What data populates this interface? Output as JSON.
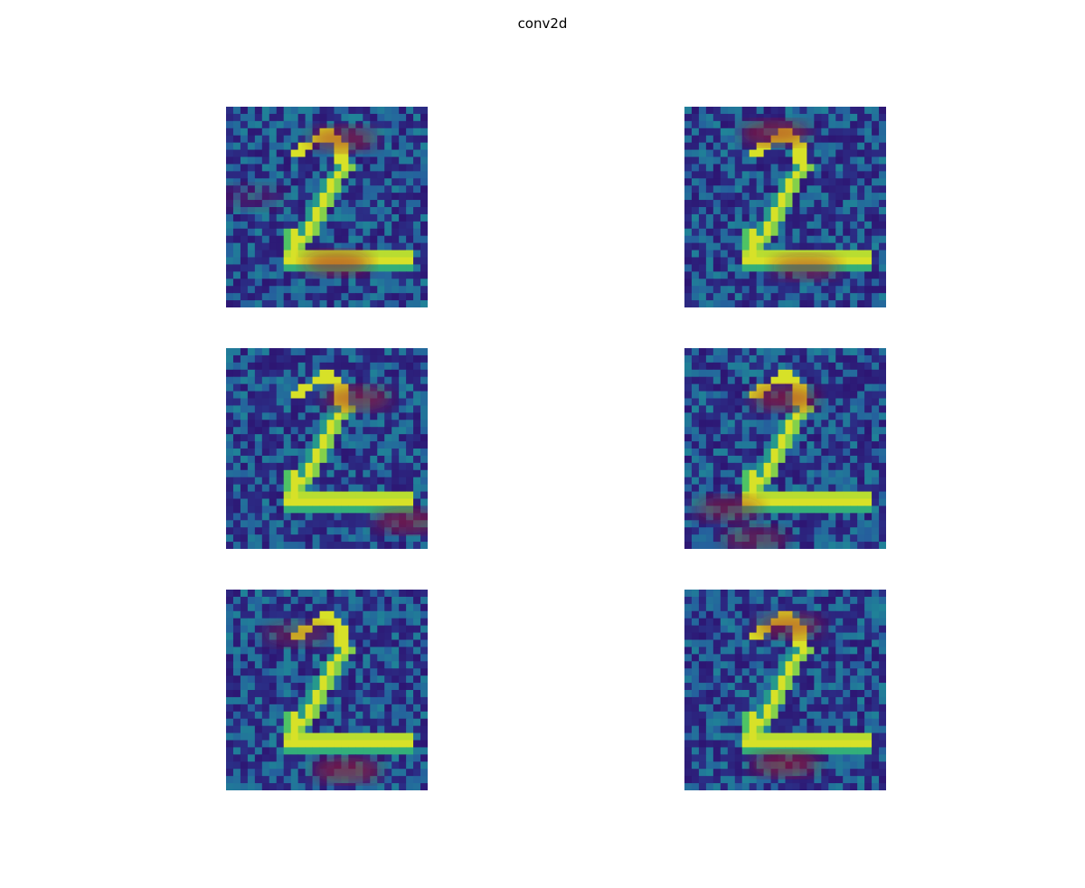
{
  "figure": {
    "title": "conv2d"
  },
  "panels": [
    {
      "id": "p1",
      "hot": [
        [
          0.58,
          0.16,
          0.9
        ],
        [
          0.55,
          0.78,
          1.0
        ],
        [
          0.12,
          0.45,
          0.35
        ]
      ]
    },
    {
      "id": "p2",
      "hot": [
        [
          0.45,
          0.13,
          1.0
        ],
        [
          0.6,
          0.8,
          0.85
        ]
      ]
    },
    {
      "id": "p3",
      "hot": [
        [
          0.65,
          0.25,
          0.95
        ],
        [
          0.9,
          0.86,
          0.9
        ]
      ]
    },
    {
      "id": "p4",
      "hot": [
        [
          0.5,
          0.25,
          1.0
        ],
        [
          0.22,
          0.8,
          0.8
        ],
        [
          0.35,
          0.95,
          0.7
        ]
      ]
    },
    {
      "id": "p5",
      "hot": [
        [
          0.6,
          0.9,
          1.0
        ],
        [
          0.35,
          0.22,
          0.6
        ]
      ]
    },
    {
      "id": "p6",
      "hot": [
        [
          0.5,
          0.87,
          1.0
        ],
        [
          0.52,
          0.18,
          0.9
        ]
      ]
    }
  ]
}
